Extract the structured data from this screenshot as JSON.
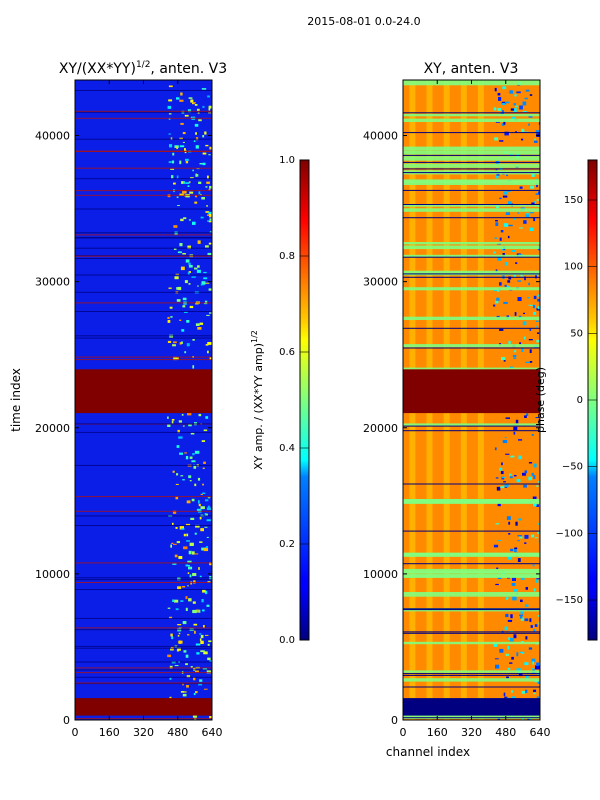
{
  "figure": {
    "suptitle": "2015-08-01 0.0-24.0"
  },
  "chart_data": [
    {
      "type": "heatmap",
      "title": "XY/(XX*YY)",
      "title_exponent": "1/2",
      "title_suffix": ", anten. V3",
      "xlabel": "",
      "ylabel": "time index",
      "xlim": [
        0,
        640
      ],
      "ylim": [
        0,
        43800
      ],
      "xticks": [
        0,
        160,
        320,
        480,
        640
      ],
      "yticks": [
        0,
        10000,
        20000,
        30000,
        40000
      ],
      "colormap": "jet",
      "value_range": [
        0.0,
        1.0
      ],
      "description_bands": [
        {
          "y_start": 21000,
          "y_end": 24000,
          "value": 1.0
        },
        {
          "y_start": 300,
          "y_end": 1500,
          "value": 1.0
        }
      ],
      "colorbar": {
        "label": "XY amp. / (XX*YY amp)",
        "label_exponent": "1/2",
        "ticks": [
          0.0,
          0.2,
          0.4,
          0.6,
          0.8,
          1.0
        ],
        "tick_labels": [
          "0.0",
          "0.2",
          "0.4",
          "0.6",
          "0.8",
          "1.0"
        ]
      }
    },
    {
      "type": "heatmap",
      "title": "XY, anten. V3",
      "xlabel": "channel index",
      "ylabel": "",
      "xlim": [
        0,
        640
      ],
      "ylim": [
        0,
        43800
      ],
      "xticks": [
        0,
        160,
        320,
        480,
        640
      ],
      "yticks": [
        0,
        10000,
        20000,
        30000,
        40000
      ],
      "colormap": "jet",
      "value_range": [
        -180,
        180
      ],
      "description_bands": [
        {
          "y_start": 21000,
          "y_end": 24000,
          "value": 180
        },
        {
          "y_start": 300,
          "y_end": 1500,
          "value": -180
        }
      ],
      "colorbar": {
        "label": "phase (deg)",
        "ticks": [
          -150,
          -100,
          -50,
          0,
          50,
          100,
          150
        ],
        "tick_labels": [
          "−150",
          "−100",
          "−50",
          "0",
          "50",
          "100",
          "150"
        ]
      }
    }
  ]
}
